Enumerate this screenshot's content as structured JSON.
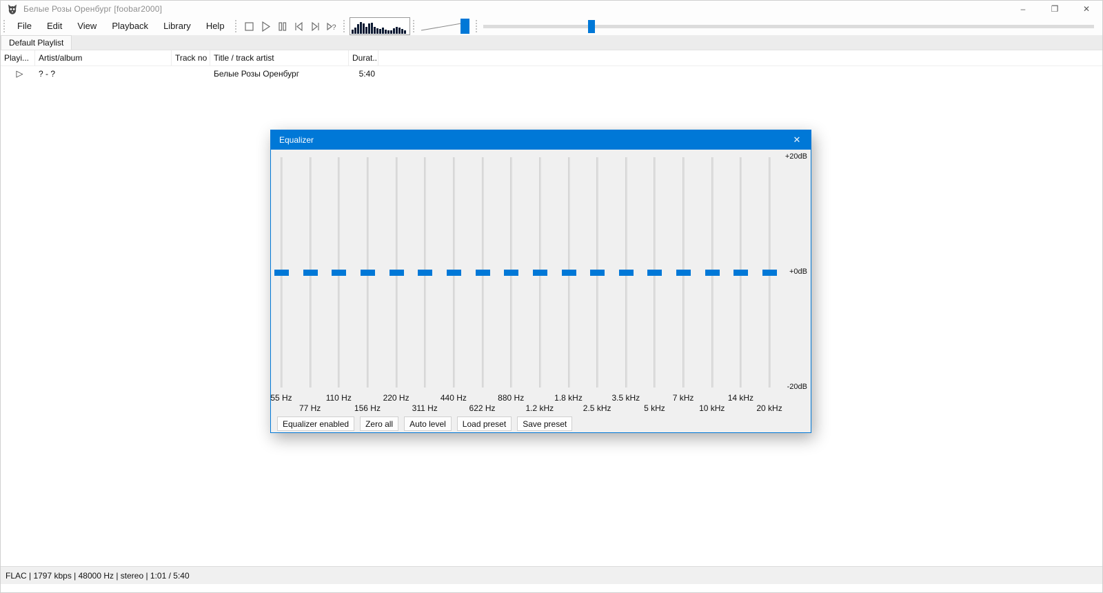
{
  "window": {
    "title": "Белые Розы Оренбург  [foobar2000]",
    "controls": [
      {
        "name": "minimize",
        "glyph": "–"
      },
      {
        "name": "restore",
        "glyph": "❐"
      },
      {
        "name": "close",
        "glyph": "✕"
      }
    ]
  },
  "menu": {
    "items": [
      "File",
      "Edit",
      "View",
      "Playback",
      "Library",
      "Help"
    ]
  },
  "toolbar": {
    "playback_buttons": [
      "stop",
      "play",
      "pause",
      "previous",
      "next",
      "random"
    ],
    "spectrum_bars": [
      6,
      9,
      14,
      17,
      15,
      10,
      15,
      16,
      10,
      8,
      7,
      9,
      6,
      5,
      5,
      8,
      10,
      9,
      7,
      5
    ],
    "volume": {
      "level_pct": 100
    },
    "seekbar": {
      "progress_pct": 17.9
    }
  },
  "tabs": [
    {
      "label": "Default Playlist"
    }
  ],
  "playlist": {
    "columns": [
      "Playi...",
      "Artist/album",
      "Track no",
      "Title / track artist",
      "Durat..."
    ],
    "rows": [
      {
        "playing": "▷",
        "artist_album": "? - ?",
        "track_no": "",
        "title": "Белые Розы Оренбург",
        "duration": "5:40"
      }
    ]
  },
  "equalizer": {
    "title": "Equalizer",
    "close_glyph": "✕",
    "db_labels": [
      {
        "label": "+20dB",
        "db": 20
      },
      {
        "label": "+0dB",
        "db": 0
      },
      {
        "label": "-20dB",
        "db": -20
      }
    ],
    "bands": [
      {
        "freq": "55 Hz",
        "gain_db": 0,
        "label_row": "top"
      },
      {
        "freq": "77 Hz",
        "gain_db": 0,
        "label_row": "bottom"
      },
      {
        "freq": "110 Hz",
        "gain_db": 0,
        "label_row": "top"
      },
      {
        "freq": "156 Hz",
        "gain_db": 0,
        "label_row": "bottom"
      },
      {
        "freq": "220 Hz",
        "gain_db": 0,
        "label_row": "top"
      },
      {
        "freq": "311 Hz",
        "gain_db": 0,
        "label_row": "bottom"
      },
      {
        "freq": "440 Hz",
        "gain_db": 0,
        "label_row": "top"
      },
      {
        "freq": "622 Hz",
        "gain_db": 0,
        "label_row": "bottom"
      },
      {
        "freq": "880 Hz",
        "gain_db": 0,
        "label_row": "top"
      },
      {
        "freq": "1.2 kHz",
        "gain_db": 0,
        "label_row": "bottom"
      },
      {
        "freq": "1.8 kHz",
        "gain_db": 0,
        "label_row": "top"
      },
      {
        "freq": "2.5 kHz",
        "gain_db": 0,
        "label_row": "bottom"
      },
      {
        "freq": "3.5 kHz",
        "gain_db": 0,
        "label_row": "top"
      },
      {
        "freq": "5 kHz",
        "gain_db": 0,
        "label_row": "bottom"
      },
      {
        "freq": "7 kHz",
        "gain_db": 0,
        "label_row": "top"
      },
      {
        "freq": "10 kHz",
        "gain_db": 0,
        "label_row": "bottom"
      },
      {
        "freq": "14 kHz",
        "gain_db": 0,
        "label_row": "top"
      },
      {
        "freq": "20 kHz",
        "gain_db": 0,
        "label_row": "bottom"
      }
    ],
    "buttons": [
      "Equalizer enabled",
      "Zero all",
      "Auto level",
      "Load preset",
      "Save preset"
    ]
  },
  "status_bar": {
    "text": "FLAC | 1797 kbps | 48000 Hz | stereo | 1:01 / 5:40"
  },
  "colors": {
    "accent": "#0078d7",
    "spectrum_bar": "#0c1a33",
    "inactive_title": "#8d8d8d"
  }
}
